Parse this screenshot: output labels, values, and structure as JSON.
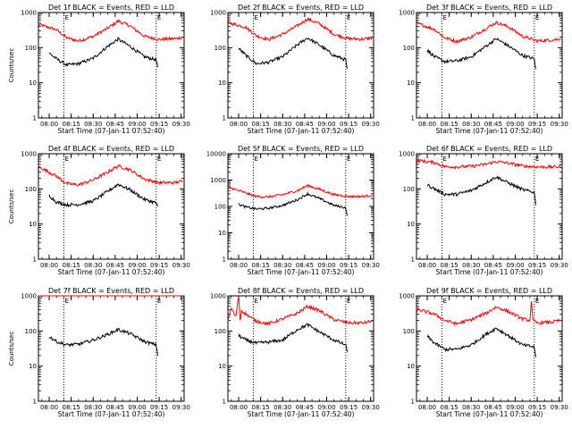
{
  "chart_data": [
    {
      "type": "line",
      "title": "Det 1f BLACK = Events, RED = LLD",
      "xlabel": "Start Time (07-Jan-11 07:52:40)",
      "ylabel": "Counts/sec",
      "yscale": "log",
      "ylim": [
        1,
        1000
      ],
      "yticks": [
        "1",
        "10",
        "100",
        "1000"
      ],
      "xlim": [
        "07:52:40",
        "09:32:00"
      ],
      "xticks": [
        "08:00",
        "08:15",
        "08:30",
        "08:45",
        "09:00",
        "09:15",
        "09:30"
      ],
      "markers": [
        "08:10",
        "09:13"
      ],
      "marker_labels": [
        "E",
        "E"
      ],
      "series": [
        {
          "color": "#ff0000",
          "x": [
            "07:52:40",
            "08:05",
            "08:12",
            "08:20",
            "08:30",
            "08:40",
            "08:47",
            "08:55",
            "09:05",
            "09:15",
            "09:25",
            "09:31"
          ],
          "y": [
            460,
            320,
            190,
            155,
            210,
            360,
            570,
            420,
            210,
            170,
            180,
            195
          ]
        },
        {
          "color": "#000000",
          "x": [
            "08:00",
            "08:05",
            "08:12",
            "08:20",
            "08:30",
            "08:40",
            "08:47",
            "08:55",
            "09:05",
            "09:13",
            "09:14"
          ],
          "y": [
            70,
            48,
            32,
            35,
            50,
            110,
            175,
            110,
            55,
            45,
            28
          ]
        }
      ]
    },
    {
      "type": "line",
      "title": "Det 2f BLACK = Events, RED = LLD",
      "xlabel": "Start Time (07-Jan-11 07:52:40)",
      "ylabel": "",
      "yscale": "log",
      "ylim": [
        1,
        1000
      ],
      "yticks": [
        "1",
        "10",
        "100",
        "1000"
      ],
      "xlim": [
        "07:52:40",
        "09:32:00"
      ],
      "xticks": [
        "08:00",
        "08:15",
        "08:30",
        "08:45",
        "09:00",
        "09:15",
        "09:30"
      ],
      "markers": [
        "08:10",
        "09:13"
      ],
      "marker_labels": [
        "E",
        "E"
      ],
      "series": [
        {
          "color": "#ff0000",
          "x": [
            "07:52:40",
            "08:05",
            "08:12",
            "08:20",
            "08:30",
            "08:40",
            "08:47",
            "08:55",
            "09:05",
            "09:15",
            "09:25",
            "09:31"
          ],
          "y": [
            520,
            380,
            220,
            170,
            240,
            420,
            650,
            480,
            240,
            180,
            175,
            190
          ]
        },
        {
          "color": "#000000",
          "x": [
            "08:00",
            "08:05",
            "08:12",
            "08:20",
            "08:30",
            "08:40",
            "08:47",
            "08:55",
            "09:05",
            "09:13",
            "09:14"
          ],
          "y": [
            95,
            60,
            35,
            38,
            55,
            120,
            190,
            120,
            60,
            45,
            25
          ]
        }
      ]
    },
    {
      "type": "line",
      "title": "Det 3f BLACK = Events, RED = LLD",
      "xlabel": "Start Time (07-Jan-11 07:52:40)",
      "ylabel": "",
      "yscale": "log",
      "ylim": [
        1,
        1000
      ],
      "yticks": [
        "1",
        "10",
        "100",
        "1000"
      ],
      "xlim": [
        "07:52:40",
        "09:32:00"
      ],
      "xticks": [
        "08:00",
        "08:15",
        "08:30",
        "08:45",
        "09:00",
        "09:15",
        "09:30"
      ],
      "markers": [
        "08:10",
        "09:13"
      ],
      "marker_labels": [
        "E",
        "E"
      ],
      "series": [
        {
          "color": "#ff0000",
          "x": [
            "07:52:40",
            "08:05",
            "08:12",
            "08:20",
            "08:30",
            "08:40",
            "08:47",
            "08:55",
            "09:05",
            "09:15",
            "09:25",
            "09:31"
          ],
          "y": [
            500,
            330,
            190,
            150,
            200,
            350,
            520,
            400,
            210,
            155,
            165,
            180
          ]
        },
        {
          "color": "#000000",
          "x": [
            "08:00",
            "08:05",
            "08:12",
            "08:20",
            "08:30",
            "08:40",
            "08:47",
            "08:55",
            "09:05",
            "09:13",
            "09:14"
          ],
          "y": [
            85,
            55,
            40,
            42,
            55,
            110,
            180,
            115,
            60,
            48,
            25
          ]
        }
      ]
    },
    {
      "type": "line",
      "title": "Det 4f BLACK = Events, RED = LLD",
      "xlabel": "Start Time (07-Jan-11 07:52:40)",
      "ylabel": "Counts/sec",
      "yscale": "log",
      "ylim": [
        1,
        1000
      ],
      "yticks": [
        "1",
        "10",
        "100",
        "1000"
      ],
      "xlim": [
        "07:52:40",
        "09:32:00"
      ],
      "xticks": [
        "08:00",
        "08:15",
        "08:30",
        "08:45",
        "09:00",
        "09:15",
        "09:30"
      ],
      "markers": [
        "08:10",
        "09:13"
      ],
      "marker_labels": [
        "E",
        "E"
      ],
      "series": [
        {
          "color": "#ff0000",
          "x": [
            "07:52:40",
            "08:05",
            "08:12",
            "08:20",
            "08:30",
            "08:40",
            "08:47",
            "08:55",
            "09:05",
            "09:15",
            "09:25",
            "09:31"
          ],
          "y": [
            430,
            230,
            140,
            130,
            180,
            300,
            450,
            350,
            190,
            150,
            150,
            165
          ]
        },
        {
          "color": "#000000",
          "x": [
            "08:00",
            "08:05",
            "08:12",
            "08:20",
            "08:30",
            "08:40",
            "08:47",
            "08:55",
            "09:05",
            "09:13",
            "09:14"
          ],
          "y": [
            65,
            42,
            35,
            36,
            45,
            85,
            135,
            95,
            50,
            40,
            32
          ]
        }
      ]
    },
    {
      "type": "line",
      "title": "Det 5f BLACK = Events, RED = LLD",
      "xlabel": "Start Time (07-Jan-11 07:52:40)",
      "ylabel": "",
      "yscale": "log",
      "ylim": [
        1,
        10000
      ],
      "yticks": [
        "1",
        "10",
        "100",
        "1000",
        "10000"
      ],
      "xlim": [
        "07:52:40",
        "09:32:00"
      ],
      "xticks": [
        "08:00",
        "08:15",
        "08:30",
        "08:45",
        "09:00",
        "09:15",
        "09:30"
      ],
      "markers": [
        "08:10",
        "09:13"
      ],
      "marker_labels": [
        "E",
        "E"
      ],
      "series": [
        {
          "color": "#ff0000",
          "x": [
            "07:52:40",
            "08:05",
            "08:12",
            "08:20",
            "08:30",
            "08:40",
            "08:47",
            "08:55",
            "09:05",
            "09:15",
            "09:25",
            "09:31"
          ],
          "y": [
            550,
            320,
            240,
            230,
            280,
            400,
            620,
            450,
            280,
            240,
            240,
            270
          ]
        },
        {
          "color": "#000000",
          "x": [
            "08:00",
            "08:05",
            "08:12",
            "08:20",
            "08:30",
            "08:40",
            "08:47",
            "08:55",
            "09:05",
            "09:13",
            "09:14"
          ],
          "y": [
            120,
            95,
            80,
            85,
            110,
            180,
            300,
            200,
            110,
            90,
            45
          ]
        }
      ]
    },
    {
      "type": "line",
      "title": "Det 6f BLACK = Events, RED = LLD",
      "xlabel": "Start Time (07-Jan-11 07:52:40)",
      "ylabel": "",
      "yscale": "log",
      "ylim": [
        1,
        1000
      ],
      "yticks": [
        "1",
        "10",
        "100",
        "1000"
      ],
      "xlim": [
        "07:52:40",
        "09:32:00"
      ],
      "xticks": [
        "08:00",
        "08:15",
        "08:30",
        "08:45",
        "09:00",
        "09:15",
        "09:30"
      ],
      "markers": [
        "08:10",
        "09:13"
      ],
      "marker_labels": [
        "E",
        "E"
      ],
      "series": [
        {
          "color": "#ff0000",
          "x": [
            "07:52:40",
            "08:05",
            "08:12",
            "08:20",
            "08:30",
            "08:40",
            "08:47",
            "08:55",
            "09:05",
            "09:15",
            "09:25",
            "09:31"
          ],
          "y": [
            650,
            560,
            430,
            420,
            440,
            500,
            600,
            540,
            450,
            420,
            420,
            430
          ]
        },
        {
          "color": "#000000",
          "x": [
            "08:00",
            "08:05",
            "08:12",
            "08:20",
            "08:30",
            "08:40",
            "08:47",
            "08:55",
            "09:05",
            "09:13",
            "09:14"
          ],
          "y": [
            130,
            100,
            70,
            70,
            90,
            150,
            220,
            150,
            95,
            80,
            35
          ]
        }
      ]
    },
    {
      "type": "line",
      "title": "Det 7f BLACK = Events, RED = LLD",
      "xlabel": "Start Time (07-Jan-11 07:52:40)",
      "ylabel": "Counts/sec",
      "yscale": "log",
      "ylim": [
        1,
        1000
      ],
      "yticks": [
        "1",
        "10",
        "100",
        "1000"
      ],
      "xlim": [
        "07:52:40",
        "09:32:00"
      ],
      "xticks": [
        "08:00",
        "08:15",
        "08:30",
        "08:45",
        "09:00",
        "09:15",
        "09:30"
      ],
      "markers": [
        "08:10",
        "09:13"
      ],
      "marker_labels": [
        "E",
        "E"
      ],
      "series": [
        {
          "color": "#ff0000",
          "x": [
            "07:52:40",
            "08:05",
            "08:12",
            "08:20",
            "08:30",
            "08:40",
            "08:47",
            "08:55",
            "09:05",
            "09:15",
            "09:25",
            "09:31"
          ],
          "y": [
            1000,
            1000,
            1000,
            1000,
            1000,
            1000,
            1000,
            1000,
            1000,
            1000,
            1000,
            1000
          ]
        },
        {
          "color": "#000000",
          "x": [
            "08:00",
            "08:05",
            "08:12",
            "08:20",
            "08:30",
            "08:40",
            "08:47",
            "08:55",
            "09:05",
            "09:13",
            "09:14"
          ],
          "y": [
            70,
            50,
            40,
            42,
            55,
            80,
            110,
            85,
            50,
            40,
            20
          ]
        }
      ]
    },
    {
      "type": "line",
      "title": "Det 8f BLACK = Events, RED = LLD",
      "xlabel": "Start Time (07-Jan-11 07:52:40)",
      "ylabel": "",
      "yscale": "log",
      "ylim": [
        1,
        1000
      ],
      "yticks": [
        "1",
        "10",
        "100",
        "1000"
      ],
      "xlim": [
        "07:52:40",
        "09:32:00"
      ],
      "xticks": [
        "08:00",
        "08:15",
        "08:30",
        "08:45",
        "09:00",
        "09:15",
        "09:30"
      ],
      "markers": [
        "08:10",
        "09:13"
      ],
      "marker_labels": [
        "E",
        "E"
      ],
      "series": [
        {
          "color": "#ff0000",
          "x": [
            "07:52:40",
            "07:55",
            "07:58",
            "08:00",
            "08:01",
            "08:02",
            "08:05",
            "08:12",
            "08:20",
            "08:30",
            "08:40",
            "08:47",
            "08:55",
            "09:05",
            "09:15",
            "09:25",
            "09:31"
          ],
          "y": [
            200,
            450,
            250,
            1000,
            200,
            380,
            300,
            190,
            160,
            220,
            320,
            500,
            380,
            210,
            170,
            170,
            190
          ]
        },
        {
          "color": "#000000",
          "x": [
            "08:00",
            "08:05",
            "08:12",
            "08:20",
            "08:30",
            "08:40",
            "08:47",
            "08:55",
            "09:05",
            "09:13",
            "09:14"
          ],
          "y": [
            75,
            55,
            45,
            48,
            55,
            110,
            150,
            95,
            55,
            40,
            25
          ]
        }
      ]
    },
    {
      "type": "line",
      "title": "Det 9f BLACK = Events, RED = LLD",
      "xlabel": "Start Time (07-Jan-11 07:52:40)",
      "ylabel": "",
      "yscale": "log",
      "ylim": [
        1,
        1000
      ],
      "yticks": [
        "1",
        "10",
        "100",
        "1000"
      ],
      "xlim": [
        "07:52:40",
        "09:32:00"
      ],
      "xticks": [
        "08:00",
        "08:15",
        "08:30",
        "08:45",
        "09:00",
        "09:15",
        "09:30"
      ],
      "markers": [
        "08:10",
        "09:13"
      ],
      "marker_labels": [
        "E",
        "E"
      ],
      "series": [
        {
          "color": "#ff0000",
          "x": [
            "07:52:40",
            "08:05",
            "08:12",
            "08:20",
            "08:30",
            "08:40",
            "08:47",
            "08:55",
            "09:05",
            "09:10",
            "09:11",
            "09:12",
            "09:15",
            "09:25",
            "09:31"
          ],
          "y": [
            420,
            300,
            200,
            160,
            210,
            320,
            480,
            360,
            220,
            200,
            700,
            200,
            170,
            180,
            200
          ]
        },
        {
          "color": "#000000",
          "x": [
            "08:00",
            "08:05",
            "08:12",
            "08:20",
            "08:30",
            "08:40",
            "08:47",
            "08:55",
            "09:05",
            "09:13",
            "09:14"
          ],
          "y": [
            70,
            45,
            30,
            30,
            40,
            80,
            120,
            75,
            40,
            35,
            18
          ]
        }
      ]
    }
  ]
}
